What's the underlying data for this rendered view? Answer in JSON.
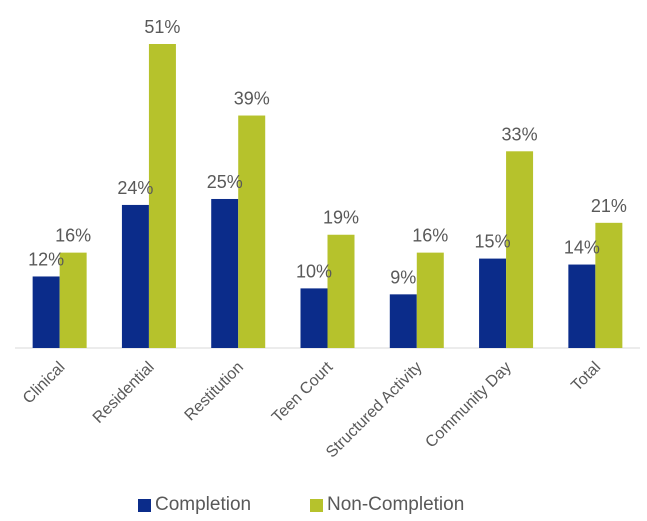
{
  "chart_data": {
    "type": "bar",
    "categories": [
      "Clinical",
      "Residential",
      "Restitution",
      "Teen Court",
      "Structured Activity",
      "Community Day",
      "Total"
    ],
    "series": [
      {
        "name": "Completion",
        "values": [
          12,
          24,
          25,
          10,
          9,
          15,
          14
        ],
        "color": "#0B2C8A"
      },
      {
        "name": "Non-Completion",
        "values": [
          16,
          51,
          39,
          19,
          16,
          33,
          21
        ],
        "color": "#B6C22C"
      }
    ],
    "data_labels": [
      [
        "12%",
        "24%",
        "25%",
        "10%",
        "9%",
        "15%",
        "14%"
      ],
      [
        "16%",
        "51%",
        "39%",
        "19%",
        "16%",
        "33%",
        "21%"
      ]
    ],
    "value_unit": "%",
    "ylim": [
      0,
      51
    ],
    "grid": false,
    "legend_position": "bottom",
    "tick_rotation": "-45"
  },
  "legend": {
    "items": [
      {
        "label": "Completion",
        "color": "#0B2C8A"
      },
      {
        "label": "Non-Completion",
        "color": "#B6C22C"
      }
    ]
  }
}
